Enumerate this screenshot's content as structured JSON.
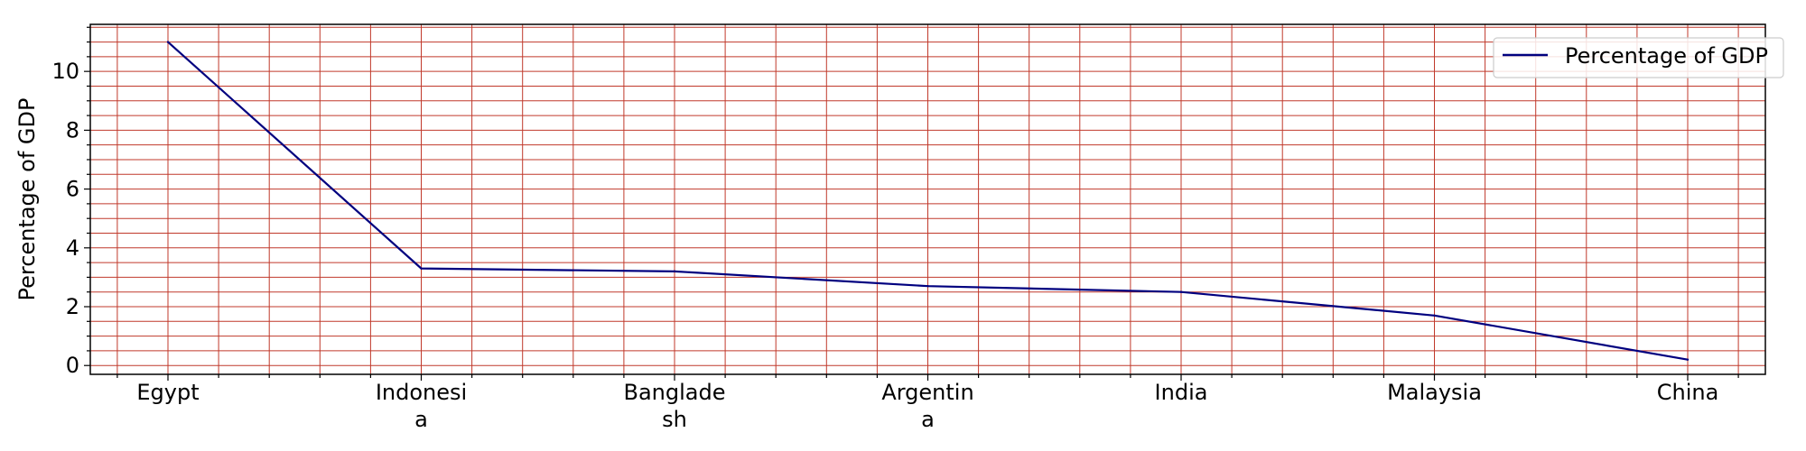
{
  "chart_data": {
    "type": "line",
    "title": "",
    "xlabel": "",
    "ylabel": "Percentage of GDP",
    "categories": [
      "Egypt",
      "Indonesia",
      "Bangladesh",
      "Argentina",
      "India",
      "Malaysia",
      "China"
    ],
    "category_display": [
      [
        "Egypt"
      ],
      [
        "Indonesi",
        "a"
      ],
      [
        "Banglade",
        "sh"
      ],
      [
        "Argentin",
        "a"
      ],
      [
        "India"
      ],
      [
        "Malaysia"
      ],
      [
        "China"
      ]
    ],
    "series": [
      {
        "name": "Percentage of GDP",
        "color": "#00007f",
        "values": [
          11.0,
          3.3,
          3.2,
          2.7,
          2.5,
          1.7,
          0.2
        ]
      }
    ],
    "ylim": [
      -0.3,
      11.6
    ],
    "yticks": [
      0,
      2,
      4,
      6,
      8,
      10
    ],
    "y_minor_step": 0.5,
    "x_minor_per_major": 5,
    "grid": true,
    "grid_color": "#c0392b",
    "legend": {
      "position": "top-right",
      "entries": [
        "Percentage of GDP"
      ]
    }
  }
}
